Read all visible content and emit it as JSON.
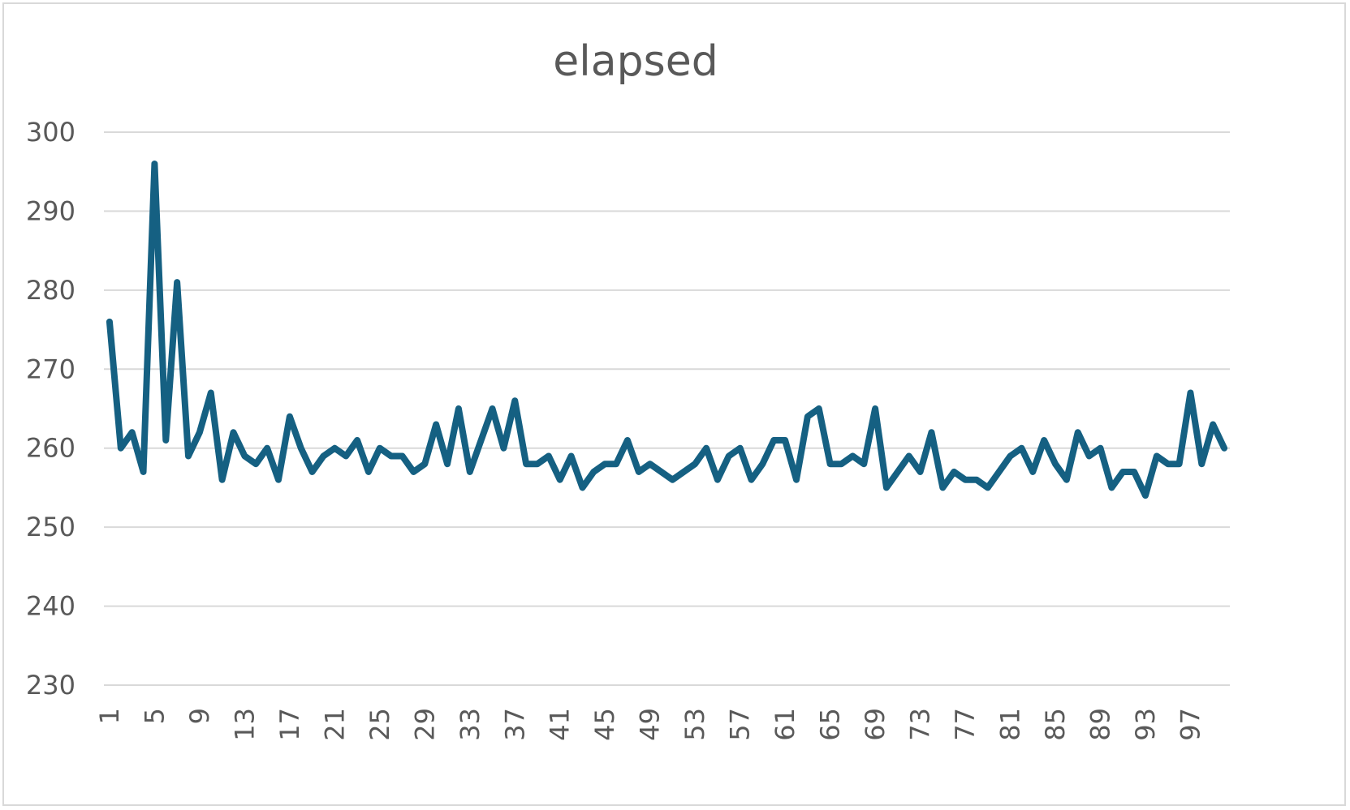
{
  "chart_data": {
    "type": "line",
    "title": "elapsed",
    "xlabel": "",
    "ylabel": "",
    "ylim": [
      230,
      300
    ],
    "yticks": [
      230,
      240,
      250,
      260,
      270,
      280,
      290,
      300
    ],
    "x": [
      1,
      2,
      3,
      4,
      5,
      6,
      7,
      8,
      9,
      10,
      11,
      12,
      13,
      14,
      15,
      16,
      17,
      18,
      19,
      20,
      21,
      22,
      23,
      24,
      25,
      26,
      27,
      28,
      29,
      30,
      31,
      32,
      33,
      34,
      35,
      36,
      37,
      38,
      39,
      40,
      41,
      42,
      43,
      44,
      45,
      46,
      47,
      48,
      49,
      50,
      51,
      52,
      53,
      54,
      55,
      56,
      57,
      58,
      59,
      60,
      61,
      62,
      63,
      64,
      65,
      66,
      67,
      68,
      69,
      70,
      71,
      72,
      73,
      74,
      75,
      76,
      77,
      78,
      79,
      80,
      81,
      82,
      83,
      84,
      85,
      86,
      87,
      88,
      89,
      90,
      91,
      92,
      93,
      94,
      95,
      96,
      97,
      98,
      99,
      100
    ],
    "xtick_labels": [
      "1",
      "5",
      "9",
      "13",
      "17",
      "21",
      "25",
      "29",
      "33",
      "37",
      "41",
      "45",
      "49",
      "53",
      "57",
      "61",
      "65",
      "69",
      "73",
      "77",
      "81",
      "85",
      "89",
      "93",
      "97"
    ],
    "grid": true,
    "legend": "none",
    "series": [
      {
        "color": "#156082",
        "values": [
          276,
          260,
          262,
          257,
          296,
          261,
          281,
          259,
          262,
          267,
          256,
          262,
          259,
          258,
          260,
          256,
          264,
          260,
          257,
          259,
          260,
          259,
          261,
          257,
          260,
          259,
          259,
          257,
          258,
          263,
          258,
          265,
          257,
          261,
          265,
          260,
          266,
          258,
          258,
          259,
          256,
          259,
          255,
          257,
          258,
          258,
          261,
          257,
          258,
          257,
          256,
          257,
          258,
          260,
          256,
          259,
          260,
          256,
          258,
          261,
          261,
          256,
          264,
          265,
          258,
          258,
          259,
          258,
          265,
          255,
          257,
          259,
          257,
          262,
          255,
          257,
          256,
          256,
          255,
          257,
          259,
          260,
          257,
          261,
          258,
          256,
          262,
          259,
          260,
          255,
          257,
          257,
          254,
          259,
          258,
          258,
          267,
          258,
          263,
          260
        ]
      }
    ]
  }
}
